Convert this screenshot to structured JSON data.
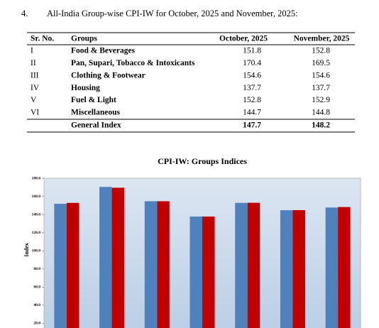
{
  "section_number": "4.",
  "heading": "All-India Group-wise CPI-IW for October, 2025 and November, 2025:",
  "table": {
    "columns": [
      "Sr. No.",
      "Groups",
      "October, 2025",
      "November, 2025"
    ],
    "rows": [
      [
        "I",
        "Food & Beverages",
        151.8,
        152.8
      ],
      [
        "II",
        "Pan, Supari, Tobacco & Intoxicants",
        170.4,
        169.5
      ],
      [
        "III",
        "Clothing & Footwear",
        154.6,
        154.6
      ],
      [
        "IV",
        "Housing",
        137.7,
        137.7
      ],
      [
        "V",
        "Fuel & Light",
        152.8,
        152.9
      ],
      [
        "VI",
        "Miscellaneous",
        144.7,
        144.8
      ]
    ],
    "total": [
      "General Index",
      147.7,
      148.2
    ]
  },
  "chart_data": {
    "type": "bar",
    "title": "CPI-IW: Groups Indices",
    "y_label": "Index",
    "series": [
      {
        "color": "#4f81bd",
        "values": [
          151.8,
          170.4,
          154.6,
          137.7,
          152.8,
          144.7,
          147.7
        ]
      },
      {
        "color": "#c00000",
        "values": [
          152.8,
          169.5,
          154.6,
          137.7,
          152.9,
          144.8,
          148.2
        ]
      }
    ],
    "ylim": [
      0,
      180
    ],
    "yticks": [
      {
        "value": 20,
        "label": "20.0"
      },
      {
        "value": 40,
        "label": "40.0"
      },
      {
        "value": 60,
        "label": "60.0"
      },
      {
        "value": 80,
        "label": "80.0"
      },
      {
        "value": 100,
        "label": "100.0"
      },
      {
        "value": 120,
        "label": "120.0"
      },
      {
        "value": 140,
        "label": "140.0"
      },
      {
        "value": 160,
        "label": "160.0"
      },
      {
        "value": 180,
        "label": "180.0"
      }
    ]
  }
}
